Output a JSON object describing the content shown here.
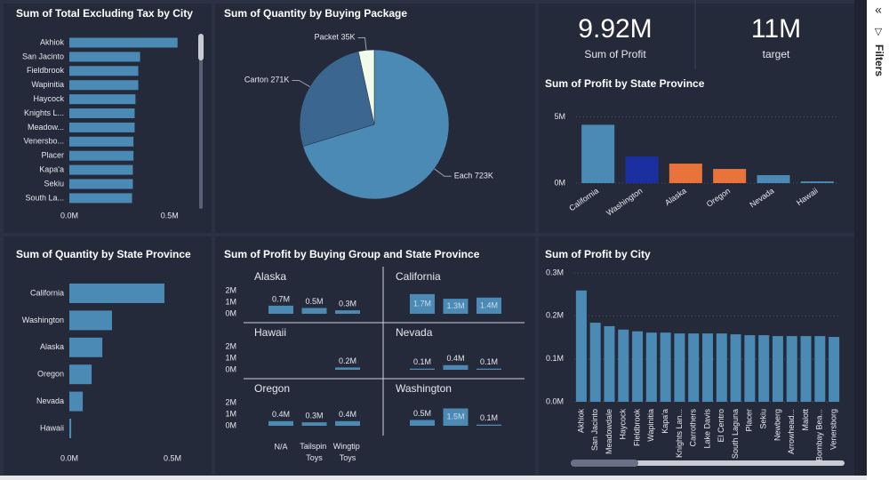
{
  "cards": [
    {
      "value": "9.92M",
      "label": "Sum of Profit"
    },
    {
      "value": "11M",
      "label": "target"
    }
  ],
  "filters_pane": {
    "title": "Filters"
  },
  "chart_data": [
    {
      "type": "bar",
      "orientation": "horizontal",
      "title": "Sum of Total Excluding Tax by City",
      "categories": [
        "Akhiok",
        "San Jacinto",
        "Fieldbrook",
        "Wapinitia",
        "Haycock",
        "Knights L...",
        "Meadow...",
        "Venersbo...",
        "Placer",
        "Kapa'a",
        "Sekiu",
        "South La..."
      ],
      "values": [
        540000,
        353000,
        344000,
        344000,
        330000,
        326000,
        326000,
        320000,
        320000,
        317000,
        317000,
        313000
      ],
      "color": "#4a8ab4",
      "xlim": [
        0,
        630000
      ],
      "xticks": [
        {
          "value": 0,
          "label": "0.0M"
        },
        {
          "value": 500000,
          "label": "0.5M"
        }
      ]
    },
    {
      "type": "pie",
      "title": "Sum of Quantity by Buying Package",
      "categories": [
        "Each",
        "Carton",
        "Packet"
      ],
      "values": [
        723000,
        271000,
        35000
      ],
      "value_labels": [
        "723K",
        "271K",
        "35K"
      ],
      "colors": [
        "#4a8ab4",
        "#3a6690",
        "#f2fbea"
      ]
    },
    {
      "type": "bar",
      "orientation": "vertical",
      "title": "Sum of Profit by State Province",
      "categories": [
        "California",
        "Washington",
        "Alaska",
        "Oregon",
        "Nevada",
        "Hawaii"
      ],
      "values": [
        4400000,
        2000000,
        1470000,
        1070000,
        600000,
        130000
      ],
      "colors": [
        "#4a8ab4",
        "#1c2fa0",
        "#e8743b",
        "#e8743b",
        "#4a8ab4",
        "#4a8ab4"
      ],
      "ylim": [
        0,
        5900000
      ],
      "yticks": [
        {
          "value": 0,
          "label": "0M"
        },
        {
          "value": 5000000,
          "label": "5M"
        }
      ],
      "grid": true
    },
    {
      "type": "bar",
      "orientation": "horizontal",
      "title": "Sum of Quantity by State Province",
      "categories": [
        "California",
        "Washington",
        "Alaska",
        "Oregon",
        "Nevada",
        "Hawaii"
      ],
      "values": [
        461000,
        207000,
        160000,
        108000,
        65000,
        9000
      ],
      "color": "#4a8ab4",
      "xlim": [
        0,
        612000
      ],
      "xticks": [
        {
          "value": 0,
          "label": "0.0M"
        },
        {
          "value": 500000,
          "label": "0.5M"
        }
      ]
    },
    {
      "type": "small_multiples",
      "title": "Sum of Profit by Buying Group and State Province",
      "categories": [
        "N/A",
        "Tailspin Toys",
        "Wingtip Toys"
      ],
      "color": "#4a8ab4",
      "ylim": [
        0,
        2000000
      ],
      "yticks": [
        {
          "value": 0,
          "label": "0M"
        },
        {
          "value": 1000000,
          "label": "1M"
        },
        {
          "value": 2000000,
          "label": "2M"
        }
      ],
      "panels": [
        {
          "name": "Alaska",
          "values": [
            700000,
            500000,
            300000
          ],
          "value_labels": [
            "0.7M",
            "0.5M",
            "0.3M"
          ]
        },
        {
          "name": "California",
          "values": [
            1700000,
            1300000,
            1400000
          ],
          "value_labels": [
            "1.7M",
            "1.3M",
            "1.4M"
          ]
        },
        {
          "name": "Hawaii",
          "values": [
            null,
            null,
            200000
          ],
          "value_labels": [
            null,
            null,
            "0.2M"
          ]
        },
        {
          "name": "Nevada",
          "values": [
            100000,
            400000,
            100000
          ],
          "value_labels": [
            "0.1M",
            "0.4M",
            "0.1M"
          ]
        },
        {
          "name": "Oregon",
          "values": [
            400000,
            300000,
            400000
          ],
          "value_labels": [
            "0.4M",
            "0.3M",
            "0.4M"
          ]
        },
        {
          "name": "Washington",
          "values": [
            500000,
            1500000,
            100000
          ],
          "value_labels": [
            "0.5M",
            "1.5M",
            "0.1M"
          ]
        }
      ]
    },
    {
      "type": "bar",
      "orientation": "vertical",
      "title": "Sum of Profit by City",
      "categories": [
        "Akhiok",
        "San Jacinto",
        "Meadowdale",
        "Haycock",
        "Fieldbrook",
        "Wapinitia",
        "Kapa'a",
        "Knights Lan...",
        "Carrothers",
        "Lake Davis",
        "El Centro",
        "South Laguna",
        "Placer",
        "Sekiu",
        "Newberg",
        "Arrowhead...",
        "Malott",
        "Bombay Bea...",
        "Venersborg"
      ],
      "values": [
        259000,
        184000,
        176000,
        168000,
        164000,
        161000,
        161000,
        159000,
        159000,
        159000,
        159000,
        157000,
        155000,
        155000,
        153000,
        153000,
        153000,
        153000,
        151000
      ],
      "color": "#4a8ab4",
      "ylim": [
        0,
        300000
      ],
      "yticks": [
        {
          "value": 0,
          "label": "0.0M"
        },
        {
          "value": 100000,
          "label": "0.1M"
        },
        {
          "value": 200000,
          "label": "0.2M"
        },
        {
          "value": 300000,
          "label": "0.3M"
        }
      ],
      "grid": true
    }
  ]
}
